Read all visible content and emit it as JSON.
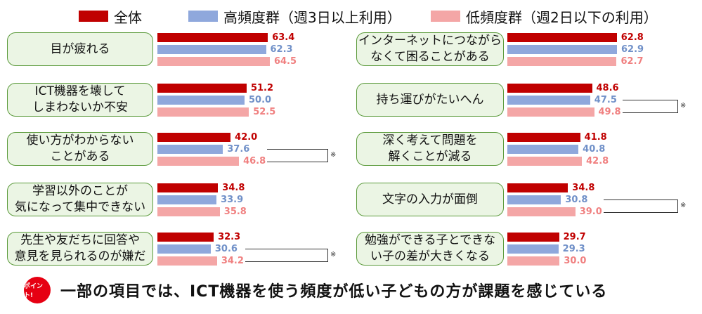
{
  "chart_data": {
    "type": "bar",
    "orientation": "horizontal",
    "series": [
      {
        "name": "全体",
        "color": "#c00000"
      },
      {
        "name": "高頻度群（週3日以上利用）",
        "color": "#8fa8dc"
      },
      {
        "name": "低頻度群（週2日以下の利用）",
        "color": "#f4a6a6"
      }
    ],
    "value_colors": [
      "#c00000",
      "#7090c8",
      "#f08080"
    ],
    "xlim": [
      0,
      100
    ],
    "panels": [
      {
        "label": "目が疲れる",
        "values": [
          63.4,
          62.3,
          64.5
        ],
        "significant": false
      },
      {
        "label": "インターネットにつながら\nなくて困ることがある",
        "values": [
          62.8,
          62.9,
          62.7
        ],
        "significant": false
      },
      {
        "label": "ICT機器を壊して\nしまわないか不安",
        "values": [
          51.2,
          50.0,
          52.5
        ],
        "significant": false
      },
      {
        "label": "持ち運びがたいへん",
        "values": [
          48.6,
          47.5,
          49.8
        ],
        "significant": true
      },
      {
        "label": "使い方がわからない\nことがある",
        "values": [
          42.0,
          37.6,
          46.8
        ],
        "significant": true
      },
      {
        "label": "深く考えて問題を\n解くことが減る",
        "values": [
          41.8,
          40.8,
          42.8
        ],
        "significant": false
      },
      {
        "label": "学習以外のことが\n気になって集中できない",
        "values": [
          34.8,
          33.9,
          35.8
        ],
        "significant": false
      },
      {
        "label": "文字の入力が面倒",
        "values": [
          34.8,
          30.8,
          39.0
        ],
        "significant": true
      },
      {
        "label": "先生や友だちに回答や\n意見を見られるのが嫌だ",
        "values": [
          32.3,
          30.6,
          34.2
        ],
        "significant": true
      },
      {
        "label": "勉強ができる子とできな\nい子の差が大きくなる",
        "values": [
          29.7,
          29.3,
          30.0
        ],
        "significant": false
      }
    ],
    "significance_mark": "※"
  },
  "footer": {
    "badge": "ポイント!",
    "text": "一部の項目では、ICT機器を使う頻度が低い子どもの方が課題を感じている"
  }
}
